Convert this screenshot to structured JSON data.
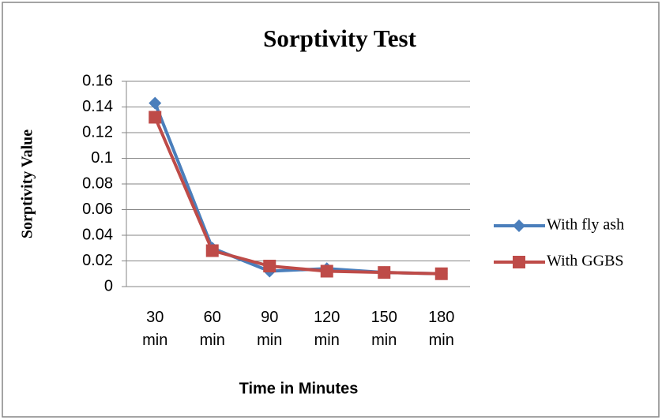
{
  "chart_data": {
    "type": "line",
    "title": "Sorptivity Test",
    "x_label": "Time in Minutes",
    "y_label": "Sorptivity Value",
    "categories": [
      "30 min",
      "60 min",
      "90 min",
      "120 min",
      "150 min",
      "180 min"
    ],
    "series": [
      {
        "name": "With fly ash",
        "color": "#4a7ebb",
        "marker": "diamond",
        "values": [
          0.143,
          0.03,
          0.012,
          0.014,
          0.011,
          0.01
        ]
      },
      {
        "name": "With GGBS",
        "color": "#be4b48",
        "marker": "square",
        "values": [
          0.132,
          0.028,
          0.016,
          0.012,
          0.011,
          0.01
        ]
      }
    ],
    "ylim": [
      0,
      0.16
    ],
    "yticks": [
      0,
      0.02,
      0.04,
      0.06,
      0.08,
      0.1,
      0.12,
      0.14,
      0.16
    ],
    "grid": true,
    "legend": "right"
  }
}
